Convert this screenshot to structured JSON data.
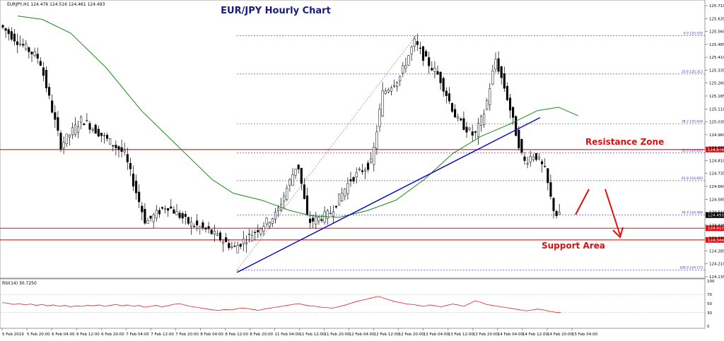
{
  "chart_data": {
    "type": "candlestick",
    "title": "EUR/JPY Hourly Chart",
    "symbol_header": "EURJPY,H1  124.476 124.516 124.461 124.493",
    "current_price_label": "124.493",
    "y_axis": {
      "ticks": [
        "125.710",
        "125.635",
        "125.560",
        "125.485",
        "125.410",
        "125.335",
        "125.260",
        "125.185",
        "125.110",
        "125.035",
        "124.960",
        "124.885",
        "124.810",
        "124.735",
        "124.660",
        "124.585",
        "124.510",
        "124.435",
        "124.360",
        "124.285",
        "124.210",
        "124.135"
      ],
      "ylim": [
        124.135,
        125.71
      ]
    },
    "x_axis": {
      "ticks": [
        "5 Feb 2019",
        "5 Feb 20:00",
        "6 Feb 04:00",
        "6 Feb 12:00",
        "6 Feb 20:00",
        "7 Feb 04:00",
        "7 Feb 12:00",
        "7 Feb 20:00",
        "8 Feb 04:00",
        "8 Feb 12:00",
        "8 Feb 20:00",
        "11 Feb 04:00",
        "11 Feb 12:00",
        "11 Feb 20:00",
        "12 Feb 04:00",
        "12 Feb 12:00",
        "12 Feb 20:00",
        "13 Feb 04:00",
        "13 Feb 12:00",
        "13 Feb 20:00",
        "14 Feb 04:00",
        "14 Feb 12:00",
        "14 Feb 20:00",
        "15 Feb 04:00"
      ]
    },
    "fibonacci_levels": [
      {
        "label": "0.0 125.535",
        "value": 125.535
      },
      {
        "label": "23.6 125.313",
        "value": 125.313
      },
      {
        "label": "38.2 125.024",
        "value": 125.024
      },
      {
        "label": "50.0 124.855",
        "value": 124.855
      },
      {
        "label": "61.8 124.693",
        "value": 124.693
      },
      {
        "label": "76.4 124.494",
        "value": 124.494
      },
      {
        "label": "100.0 124.173",
        "value": 124.173
      }
    ],
    "resistance_level": {
      "label": "124.874",
      "value": 124.874
    },
    "support_levels": [
      {
        "label": "124.417",
        "value": 124.417
      },
      {
        "label": "124.349",
        "value": 124.349
      }
    ],
    "annotations": {
      "resistance": "Resistance Zone",
      "support": "Support Area"
    },
    "rsi": {
      "label": "RSI(14) 30.7250",
      "ticks": [
        "100",
        "70",
        "50",
        "30",
        "0"
      ],
      "path_values": [
        52,
        51,
        48,
        50,
        47,
        49,
        46,
        48,
        45,
        47,
        44,
        46,
        43,
        45,
        44,
        46,
        45,
        47,
        44,
        46,
        48,
        45,
        47,
        44,
        46,
        42,
        44,
        46,
        43,
        45,
        48,
        50,
        47,
        44,
        42,
        40,
        38,
        36,
        35,
        37,
        36,
        38,
        40,
        39,
        37,
        35,
        38,
        40,
        42,
        44,
        46,
        48,
        50,
        47,
        45,
        44,
        42,
        41,
        40,
        43,
        46,
        50,
        54,
        57,
        60,
        63,
        66,
        62,
        58,
        54,
        52,
        49,
        48,
        46,
        44,
        47,
        45,
        43,
        46,
        49,
        47,
        44,
        50,
        56,
        53,
        48,
        46,
        44,
        42,
        40,
        38,
        36,
        34,
        36,
        38,
        36,
        33,
        31,
        30
      ],
      "max": 100
    },
    "colors": {
      "candle": "#000000",
      "ma": "#1a8a1a",
      "trendline": "#0000cc",
      "resistance_support": "#e01010",
      "fib": "#3333bb",
      "rsi_line": "#e02020",
      "price_label_bg": "#e01010"
    }
  }
}
